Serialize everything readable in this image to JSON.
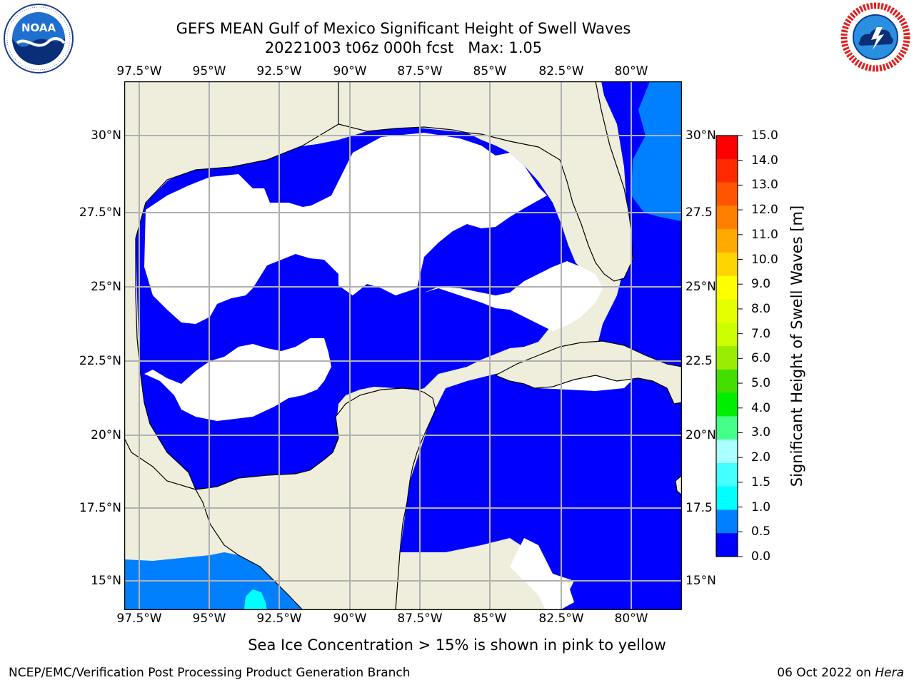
{
  "header": {
    "title_line1": "GEFS MEAN Gulf of Mexico Significant Height of Swell Waves",
    "title_line2": "20221003 t06z 000h fcst   Max: 1.05"
  },
  "logos": {
    "left": {
      "text": "NOAA",
      "ring_text": "NATIONAL OCEANIC AND ATMOSPHERIC ADMINISTRATION · U.S. DEPARTMENT OF COMMERCE"
    },
    "right": {
      "ring_text": "NATIONAL WEATHER SERVICE"
    }
  },
  "map": {
    "lon_labels": [
      "97.5°W",
      "95°W",
      "92.5°W",
      "90°W",
      "87.5°W",
      "85°W",
      "82.5°W",
      "80°W"
    ],
    "lat_labels_left": [
      "30°N",
      "27.5°N",
      "25°N",
      "22.5°N",
      "20°N",
      "17.5°N",
      "15°N"
    ],
    "lat_labels_right": [
      "30°N",
      "27.5",
      "25°N",
      "22.5",
      "20°N",
      "17.5",
      "15°N"
    ],
    "colors": {
      "land": "#efeedc",
      "ocean_low": "#0000ff",
      "ocean_mid": "#0080ff",
      "calm": "#ffffff",
      "grid": "#b0b0b0"
    }
  },
  "colorbar": {
    "label": "Significant Height of Swell Waves [m]",
    "ticks": [
      "15.0",
      "14.0",
      "13.0",
      "12.0",
      "11.0",
      "10.0",
      "9.0",
      "8.0",
      "7.0",
      "6.0",
      "5.0",
      "4.0",
      "3.0",
      "2.0",
      "1.5",
      "1.0",
      "0.5",
      "0.0"
    ],
    "colors": [
      "#ff0000",
      "#ff2a00",
      "#ff5500",
      "#ff8000",
      "#ffaa00",
      "#ffd400",
      "#ffff00",
      "#e6ff00",
      "#ccff00",
      "#99ee00",
      "#44dd00",
      "#00ee00",
      "#44ff88",
      "#aaffff",
      "#44ffff",
      "#00ffff",
      "#0080ff",
      "#0000ff"
    ]
  },
  "footer": {
    "note": "Sea Ice Concentration > 15% is shown in pink to yellow",
    "left": "NCEP/EMC/Verification Post Processing Product Generation Branch",
    "right_date": "06 Oct 2022 on ",
    "right_host": "Hera"
  }
}
